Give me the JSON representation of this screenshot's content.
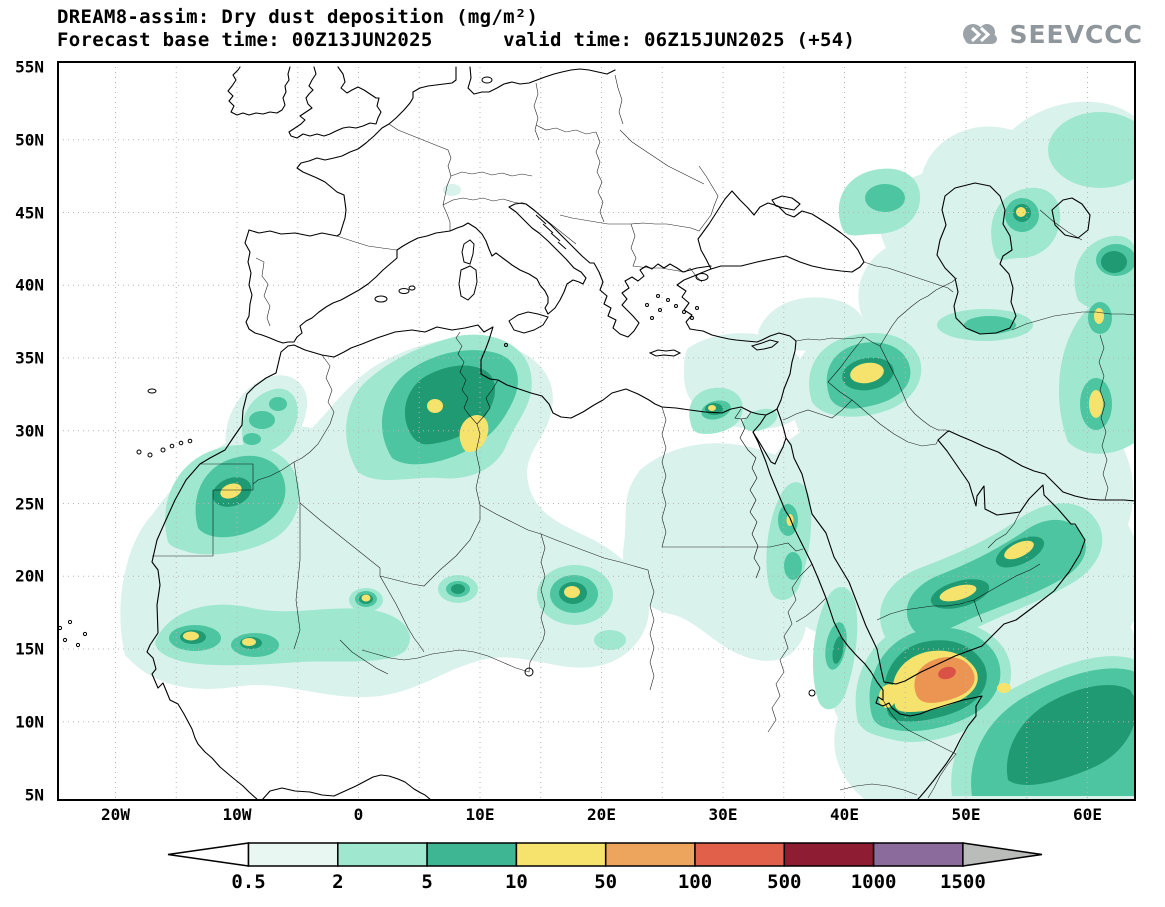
{
  "header": {
    "title": "DREAM8-assim: Dry dust deposition (mg/m²)",
    "subtitle": "Forecast base time: 00Z13JUN2025      valid time: 06Z15JUN2025 (+54)"
  },
  "logo": {
    "text": "SEEVCCC"
  },
  "map": {
    "y_ticks": [
      "55N",
      "50N",
      "45N",
      "40N",
      "35N",
      "30N",
      "25N",
      "20N",
      "15N",
      "10N",
      "5N"
    ],
    "x_ticks": [
      "20W",
      "10W",
      "0",
      "10E",
      "20E",
      "30E",
      "40E",
      "50E",
      "60E"
    ]
  },
  "legend": {
    "labels": [
      "0.5",
      "2",
      "5",
      "10",
      "50",
      "100",
      "500",
      "1000",
      "1500"
    ],
    "segment_colors": [
      "#e8f7f2",
      "#9fe8cf",
      "#3eb693",
      "#f5e36e",
      "#eda45c",
      "#e0604a",
      "#8e1c32",
      "#8a6b9c"
    ],
    "below_color": "#ffffff",
    "above_color": "#b9bcb9"
  },
  "palette": {
    "map_shading_levels": [
      "#daf2ec",
      "#9fe8cf",
      "#4cc5a0",
      "#1f9a72",
      "#f5e36e",
      "#ec9552",
      "#da5246"
    ],
    "coastline": "#000000",
    "graticule": "#b5b5b5",
    "logo_gray": "#9ba3a8"
  }
}
